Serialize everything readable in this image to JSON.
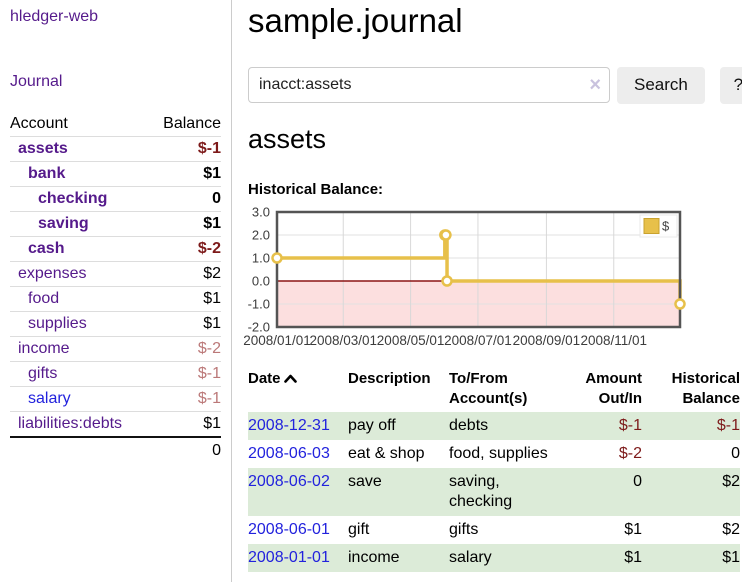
{
  "colors": {
    "link_visited_purple": "#551a8b",
    "link_blue": "#2222dd",
    "negative_strong": "#7d1a1a",
    "negative_muted": "#bb7878",
    "row_stripe_green": "#dcebd8",
    "button_gray": "#ededed",
    "chart_series_gold": "#e7c04a"
  },
  "sidebar": {
    "brand": "hledger-web",
    "journal_link": "Journal",
    "table": {
      "account_header": "Account",
      "balance_header": "Balance",
      "total": "0"
    },
    "accounts": [
      {
        "name": "assets",
        "balance": "$-1",
        "indent": 1,
        "matched": true
      },
      {
        "name": "bank",
        "balance": "$1",
        "indent": 2,
        "matched": true
      },
      {
        "name": "checking",
        "balance": "0",
        "indent": 3,
        "matched": true
      },
      {
        "name": "saving",
        "balance": "$1",
        "indent": 3,
        "matched": true
      },
      {
        "name": "cash",
        "balance": "$-2",
        "indent": 2,
        "matched": true
      },
      {
        "name": "expenses",
        "balance": "$2",
        "indent": 1,
        "matched": false
      },
      {
        "name": "food",
        "balance": "$1",
        "indent": 2,
        "matched": false
      },
      {
        "name": "supplies",
        "balance": "$1",
        "indent": 2,
        "matched": false
      },
      {
        "name": "income",
        "balance": "$-2",
        "indent": 1,
        "matched": false
      },
      {
        "name": "gifts",
        "balance": "$-1",
        "indent": 2,
        "matched": false
      },
      {
        "name": "salary",
        "balance": "$-1",
        "indent": 2,
        "matched": false,
        "visited": false
      },
      {
        "name": "liabilities:debts",
        "balance": "$1",
        "indent": 1,
        "matched": false
      }
    ]
  },
  "main": {
    "title": "sample.journal",
    "search": {
      "value": "inacct:assets",
      "clear_icon": "×",
      "search_button": "Search",
      "help_button": "?"
    },
    "account_heading": "assets",
    "chart_label": "Historical Balance:"
  },
  "chart_data": {
    "type": "line",
    "step": true,
    "title": "",
    "xlabel": "",
    "ylabel": "",
    "series": [
      {
        "name": "$",
        "color": "#e7c04a",
        "points": [
          [
            "2008-01-01",
            1
          ],
          [
            "2008-06-01",
            2
          ],
          [
            "2008-06-02",
            2
          ],
          [
            "2008-06-03",
            0
          ],
          [
            "2008-12-31",
            -1
          ]
        ]
      }
    ],
    "x_range": [
      "2008-01-01",
      "2008-12-31"
    ],
    "x_ticks": [
      "2008/01/01",
      "2008/03/01",
      "2008/05/01",
      "2008/07/01",
      "2008/09/01",
      "2008/11/01"
    ],
    "y_ticks": [
      3.0,
      2.0,
      1.0,
      0.0,
      -1.0,
      -2.0
    ],
    "ylim": [
      -2,
      3
    ],
    "grid": true,
    "legend_position": "top-right",
    "negative_region_color": "#fcdfdf",
    "zero_line_color": "#8b1515"
  },
  "register": {
    "columns": {
      "date": "Date",
      "description": "Description",
      "accounts": "To/From Account(s)",
      "amount": "Amount Out/In",
      "balance": "Historical Balance"
    },
    "rows": [
      {
        "date": "2008-12-31",
        "description": "pay off",
        "accounts": "debts",
        "amount": "$-1",
        "balance": "$-1"
      },
      {
        "date": "2008-06-03",
        "description": "eat & shop",
        "accounts": "food, supplies",
        "amount": "$-2",
        "balance": "0"
      },
      {
        "date": "2008-06-02",
        "description": "save",
        "accounts": "saving, checking",
        "amount": "0",
        "balance": "$2"
      },
      {
        "date": "2008-06-01",
        "description": "gift",
        "accounts": "gifts",
        "amount": "$1",
        "balance": "$2"
      },
      {
        "date": "2008-01-01",
        "description": "income",
        "accounts": "salary",
        "amount": "$1",
        "balance": "$1"
      }
    ]
  }
}
